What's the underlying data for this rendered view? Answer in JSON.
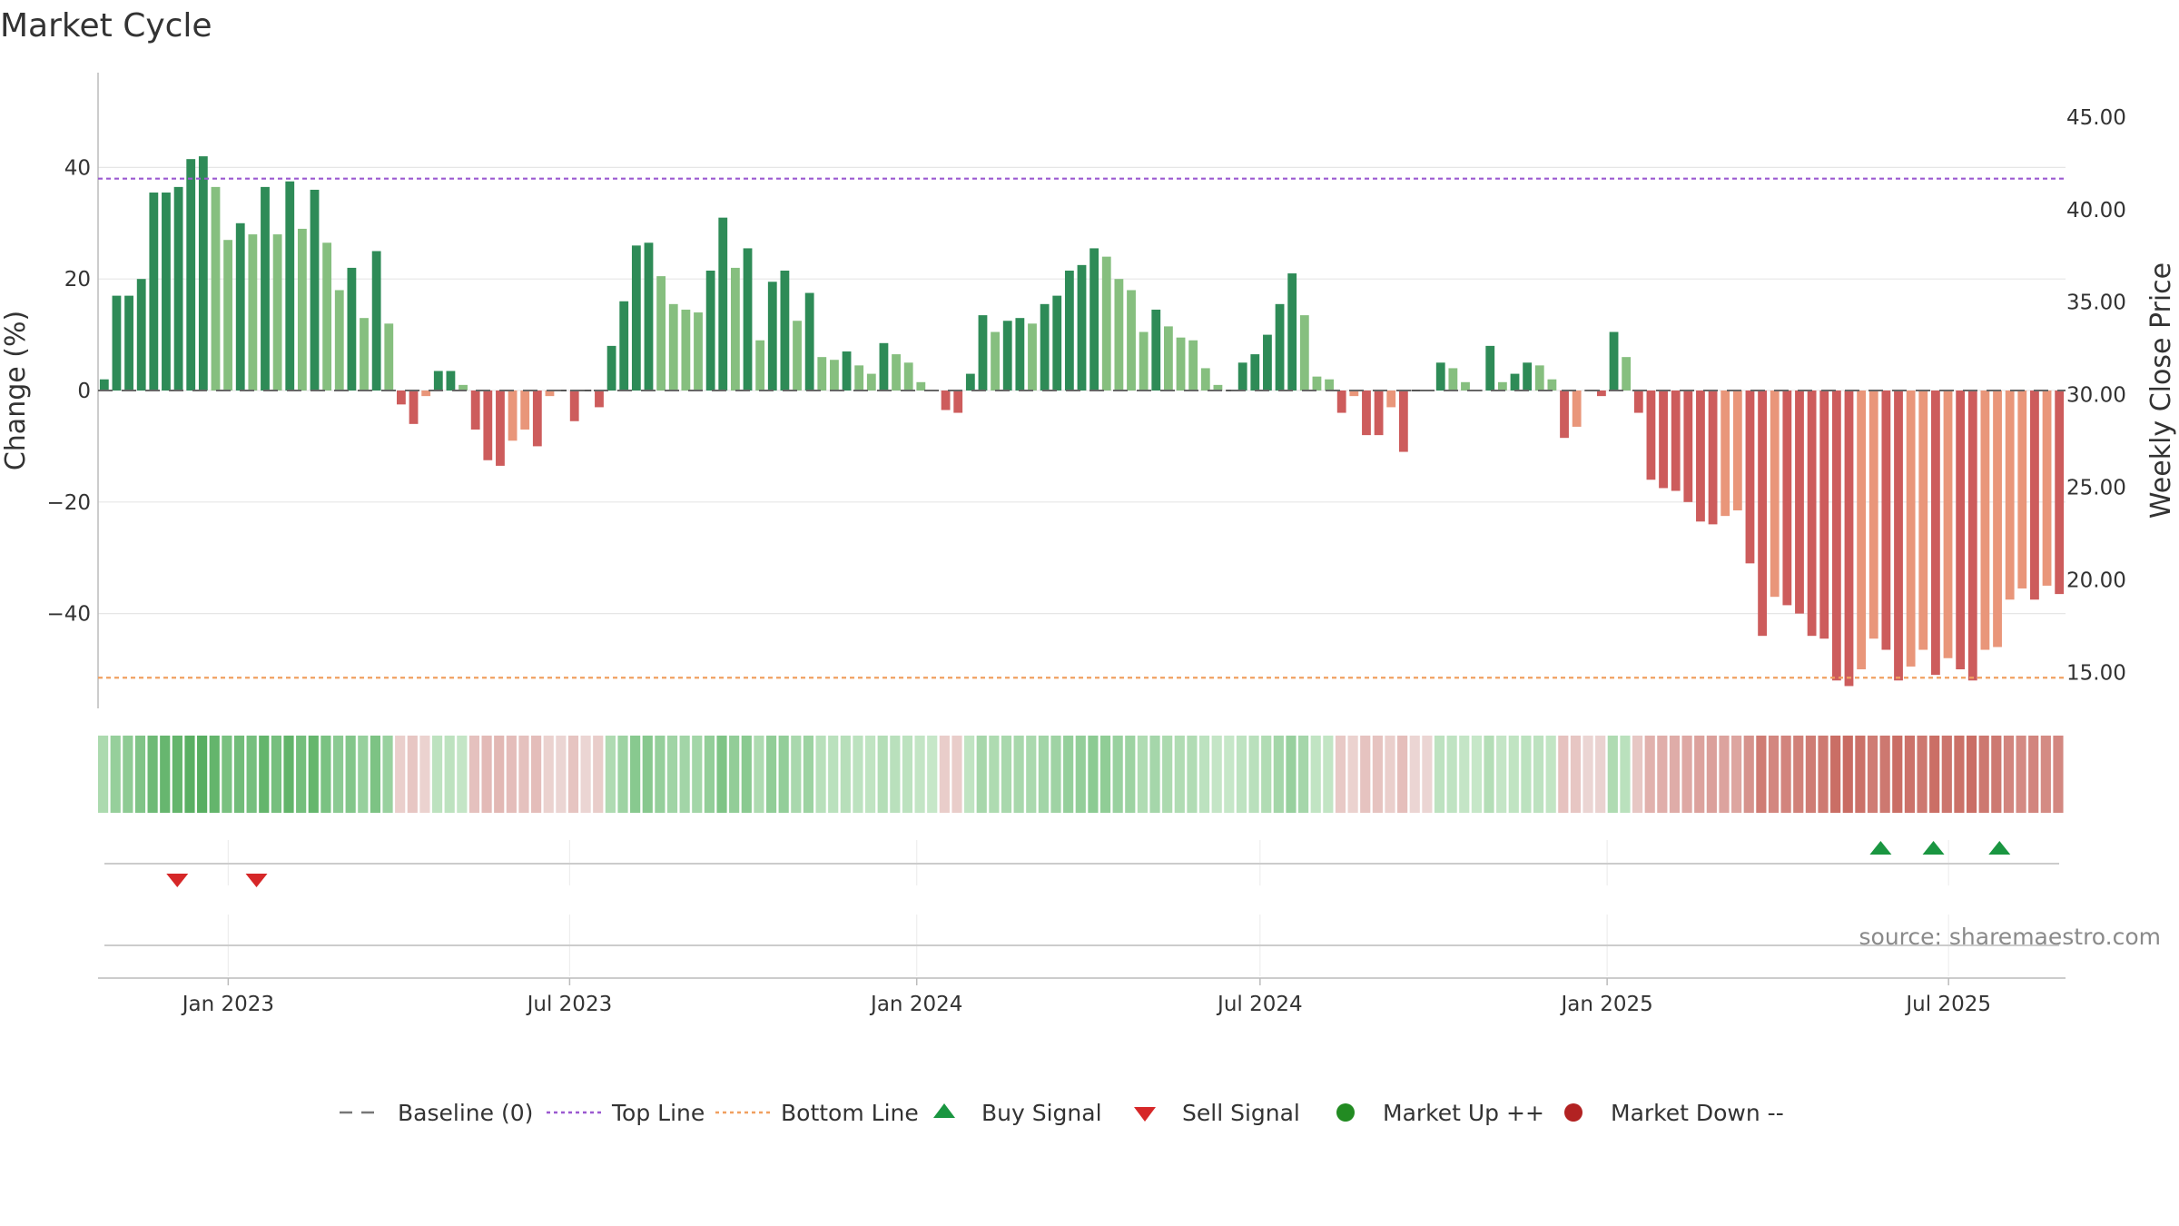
{
  "chart_data": {
    "type": "bar",
    "title": "Market Cycle",
    "ylabel_left": "Change (%)",
    "ylabel_right": "Weekly Close Price",
    "source": "source: sharemaestro.com",
    "ylim_left": [
      -57,
      57
    ],
    "ylim_right": [
      13.05,
      47.4
    ],
    "yticks_left": [
      40,
      20,
      0,
      -20,
      -40
    ],
    "yticks_left_labels": [
      "40",
      "20",
      "0",
      "−20",
      "−40"
    ],
    "yticks_right": [
      45,
      40,
      35,
      30,
      25,
      20,
      15
    ],
    "yticks_right_labels": [
      "45.00",
      "40.00",
      "35.00",
      "30.00",
      "25.00",
      "20.00",
      "15.00"
    ],
    "x_range": [
      "2022-10-24",
      "2025-09-01"
    ],
    "x_ticks": [
      {
        "date": "2023-01-01",
        "label": "Jan 2023"
      },
      {
        "date": "2023-07-01",
        "label": "Jul 2023"
      },
      {
        "date": "2024-01-01",
        "label": "Jan 2024"
      },
      {
        "date": "2024-07-01",
        "label": "Jul 2024"
      },
      {
        "date": "2025-01-01",
        "label": "Jan 2025"
      },
      {
        "date": "2025-07-01",
        "label": "Jul 2025"
      }
    ],
    "week_start": "2022-10-24",
    "top_line": 38,
    "bottom_line": -51.5,
    "baseline": 0,
    "values": [
      2,
      17,
      17,
      20,
      35.5,
      35.5,
      36.5,
      41.5,
      42,
      36.5,
      27,
      30,
      28,
      36.5,
      28,
      37.5,
      29,
      36,
      26.5,
      18,
      22,
      13,
      25,
      12,
      -2.5,
      -6,
      -1,
      3.5,
      3.5,
      1,
      -7,
      -12.5,
      -13.5,
      -9,
      -7,
      -10,
      -1,
      0,
      -5.5,
      0,
      -3,
      8,
      16,
      26,
      26.5,
      20.5,
      15.5,
      14.5,
      14,
      21.5,
      31,
      22,
      25.5,
      9,
      19.5,
      21.5,
      12.5,
      17.5,
      6,
      5.5,
      7,
      4.5,
      3,
      8.5,
      6.5,
      5,
      1.5,
      0,
      -3.5,
      -4,
      3,
      13.5,
      10.5,
      12.5,
      13,
      12,
      15.5,
      17,
      21.5,
      22.5,
      25.5,
      24,
      20,
      18,
      10.5,
      14.5,
      11.5,
      9.5,
      9,
      4,
      1,
      0,
      5,
      6.5,
      10,
      15.5,
      21,
      13.5,
      2.5,
      2,
      -4,
      -1,
      -8,
      -8,
      -3,
      -11,
      0,
      0,
      5,
      4,
      1.5,
      0,
      8,
      1.5,
      3,
      5,
      4.5,
      2,
      -8.5,
      -6.5,
      0,
      -1,
      10.5,
      6,
      -4,
      -16,
      -17.5,
      -18,
      -20,
      -23.5,
      -24,
      -22.5,
      -21.5,
      -31,
      -44,
      -37,
      -38.5,
      -40,
      -44,
      -44.5,
      -52,
      -53,
      -50,
      -44.5,
      -46.5,
      -52,
      -49.5,
      -46.5,
      -51,
      -48,
      -50,
      -52,
      -46.5,
      -46,
      -37.5,
      -35.5,
      -37.5,
      -35,
      -36.5
    ],
    "regime_strip_rgb": [
      [
        172,
        218,
        175
      ],
      [
        150,
        207,
        155
      ],
      [
        142,
        203,
        148
      ],
      [
        128,
        196,
        135
      ],
      [
        110,
        186,
        118
      ],
      [
        103,
        182,
        111
      ],
      [
        100,
        181,
        108
      ],
      [
        90,
        175,
        99
      ],
      [
        88,
        174,
        97
      ],
      [
        100,
        181,
        108
      ],
      [
        121,
        193,
        128
      ],
      [
        113,
        188,
        121
      ],
      [
        118,
        191,
        126
      ],
      [
        100,
        181,
        108
      ],
      [
        118,
        191,
        126
      ],
      [
        98,
        180,
        106
      ],
      [
        116,
        190,
        124
      ],
      [
        101,
        182,
        109
      ],
      [
        122,
        194,
        130
      ],
      [
        139,
        202,
        146
      ],
      [
        131,
        198,
        138
      ],
      [
        151,
        208,
        157
      ],
      [
        125,
        195,
        132
      ],
      [
        153,
        209,
        159
      ],
      [
        234,
        207,
        204
      ],
      [
        231,
        198,
        195
      ],
      [
        235,
        210,
        207
      ],
      [
        189,
        226,
        191
      ],
      [
        189,
        226,
        191
      ],
      [
        196,
        229,
        198
      ],
      [
        229,
        193,
        190
      ],
      [
        227,
        186,
        183
      ],
      [
        226,
        184,
        180
      ],
      [
        228,
        189,
        186
      ],
      [
        229,
        193,
        190
      ],
      [
        228,
        189,
        186
      ],
      [
        235,
        210,
        207
      ],
      [
        235,
        213,
        211
      ],
      [
        230,
        196,
        193
      ],
      [
        235,
        213,
        211
      ],
      [
        233,
        205,
        202
      ],
      [
        175,
        219,
        178
      ],
      [
        158,
        211,
        163
      ],
      [
        136,
        201,
        143
      ],
      [
        135,
        200,
        142
      ],
      [
        149,
        207,
        155
      ],
      [
        160,
        212,
        165
      ],
      [
        162,
        213,
        167
      ],
      [
        163,
        214,
        168
      ],
      [
        147,
        206,
        153
      ],
      [
        127,
        196,
        134
      ],
      [
        146,
        205,
        152
      ],
      [
        138,
        202,
        145
      ],
      [
        174,
        219,
        177
      ],
      [
        145,
        205,
        151
      ],
      [
        147,
        206,
        153
      ],
      [
        169,
        216,
        173
      ],
      [
        157,
        211,
        162
      ],
      [
        184,
        224,
        187
      ],
      [
        186,
        225,
        189
      ],
      [
        183,
        223,
        186
      ],
      [
        188,
        226,
        191
      ],
      [
        192,
        228,
        194
      ],
      [
        180,
        222,
        183
      ],
      [
        185,
        224,
        188
      ],
      [
        188,
        226,
        191
      ],
      [
        195,
        229,
        197
      ],
      [
        198,
        231,
        200
      ],
      [
        233,
        205,
        202
      ],
      [
        233,
        205,
        202
      ],
      [
        192,
        228,
        194
      ],
      [
        167,
        215,
        171
      ],
      [
        174,
        219,
        177
      ],
      [
        169,
        216,
        173
      ],
      [
        168,
        216,
        172
      ],
      [
        170,
        217,
        174
      ],
      [
        162,
        213,
        167
      ],
      [
        159,
        211,
        164
      ],
      [
        149,
        207,
        155
      ],
      [
        147,
        206,
        153
      ],
      [
        140,
        203,
        147
      ],
      [
        144,
        205,
        150
      ],
      [
        153,
        209,
        159
      ],
      [
        157,
        211,
        162
      ],
      [
        176,
        220,
        179
      ],
      [
        165,
        214,
        170
      ],
      [
        172,
        218,
        175
      ],
      [
        176,
        220,
        179
      ],
      [
        177,
        220,
        180
      ],
      [
        188,
        226,
        191
      ],
      [
        196,
        229,
        198
      ],
      [
        198,
        231,
        200
      ],
      [
        190,
        227,
        193
      ],
      [
        185,
        224,
        188
      ],
      [
        177,
        220,
        180
      ],
      [
        164,
        214,
        169
      ],
      [
        152,
        208,
        158
      ],
      [
        165,
        214,
        170
      ],
      [
        193,
        228,
        195
      ],
      [
        194,
        229,
        196
      ],
      [
        232,
        201,
        198
      ],
      [
        235,
        210,
        207
      ],
      [
        230,
        195,
        192
      ],
      [
        230,
        195,
        192
      ],
      [
        234,
        207,
        204
      ],
      [
        229,
        190,
        187
      ],
      [
        235,
        213,
        211
      ],
      [
        235,
        213,
        211
      ],
      [
        189,
        226,
        192
      ],
      [
        191,
        227,
        194
      ],
      [
        196,
        229,
        198
      ],
      [
        198,
        231,
        200
      ],
      [
        180,
        222,
        183
      ],
      [
        196,
        229,
        198
      ],
      [
        192,
        228,
        194
      ],
      [
        188,
        226,
        191
      ],
      [
        189,
        226,
        192
      ],
      [
        194,
        229,
        196
      ],
      [
        230,
        194,
        191
      ],
      [
        231,
        198,
        195
      ],
      [
        235,
        213,
        211
      ],
      [
        234,
        210,
        208
      ],
      [
        175,
        219,
        178
      ],
      [
        186,
        225,
        189
      ],
      [
        231,
        199,
        196
      ],
      [
        225,
        177,
        173
      ],
      [
        224,
        174,
        170
      ],
      [
        223,
        172,
        168
      ],
      [
        222,
        168,
        164
      ],
      [
        220,
        162,
        157
      ],
      [
        219,
        160,
        155
      ],
      [
        220,
        163,
        158
      ],
      [
        221,
        165,
        160
      ],
      [
        214,
        147,
        141
      ],
      [
        207,
        124,
        116
      ],
      [
        211,
        135,
        128
      ],
      [
        210,
        132,
        125
      ],
      [
        209,
        129,
        121
      ],
      [
        207,
        124,
        116
      ],
      [
        206,
        122,
        114
      ],
      [
        202,
        110,
        101
      ],
      [
        201,
        108,
        99
      ],
      [
        203,
        113,
        104
      ],
      [
        207,
        124,
        116
      ],
      [
        205,
        120,
        112
      ],
      [
        202,
        110,
        101
      ],
      [
        204,
        114,
        106
      ],
      [
        205,
        120,
        112
      ],
      [
        203,
        111,
        102
      ],
      [
        204,
        117,
        109
      ],
      [
        203,
        113,
        104
      ],
      [
        202,
        110,
        101
      ],
      [
        205,
        120,
        112
      ],
      [
        205,
        121,
        113
      ],
      [
        210,
        133,
        126
      ],
      [
        212,
        138,
        131
      ],
      [
        210,
        133,
        126
      ],
      [
        212,
        139,
        132
      ],
      [
        211,
        135,
        128
      ]
    ],
    "signals": {
      "buy": [
        "2025-05-26",
        "2025-06-23",
        "2025-07-28"
      ],
      "sell": [
        "2022-12-05",
        "2023-01-16"
      ]
    },
    "legend": [
      {
        "key": "baseline",
        "label": "Baseline (0)",
        "color": "#777777"
      },
      {
        "key": "top",
        "label": "Top Line",
        "color": "#9b59d0"
      },
      {
        "key": "bottom",
        "label": "Bottom Line",
        "color": "#f0a060"
      },
      {
        "key": "buy",
        "label": "Buy Signal",
        "color": "#1a9641"
      },
      {
        "key": "sell",
        "label": "Sell Signal",
        "color": "#d62728"
      },
      {
        "key": "up",
        "label": "Market Up ++",
        "color": "#228b22"
      },
      {
        "key": "down",
        "label": "Market Down --",
        "color": "#b22222"
      }
    ],
    "colors": {
      "pos_strong": "#2e8b57",
      "pos_weak": "#86bf7f",
      "neg_strong": "#cd5c5c",
      "neg_weak": "#e9967a",
      "grid": "#e6e6e6",
      "axis": "#bbbbbb"
    }
  }
}
